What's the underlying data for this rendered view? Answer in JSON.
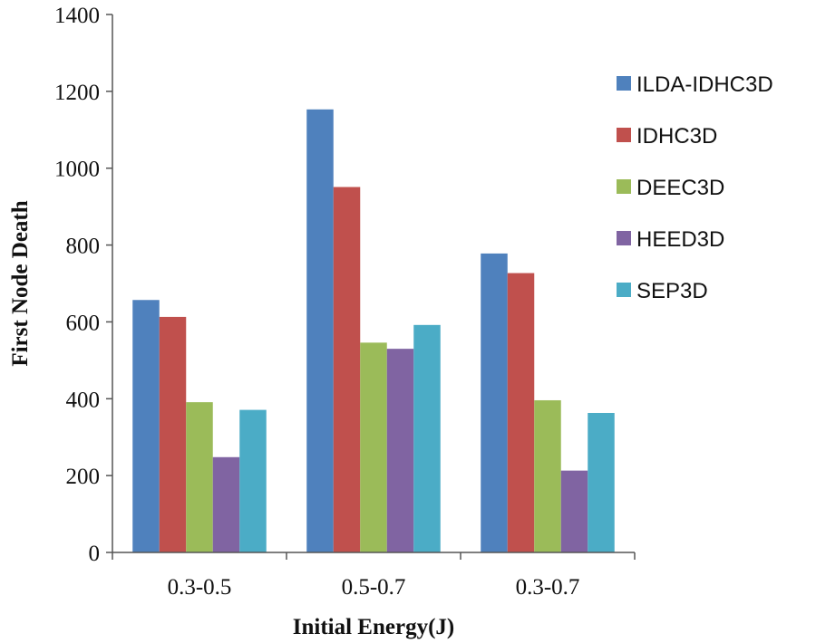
{
  "chart_data": {
    "type": "bar",
    "xlabel": "Initial Energy(J)",
    "ylabel": "First Node Death",
    "categories": [
      "0.3-0.5",
      "0.5-0.7",
      "0.3-0.7"
    ],
    "ylim": [
      0,
      1400
    ],
    "yticks": [
      "0",
      "200",
      "400",
      "600",
      "800",
      "1000",
      "1200",
      "1400"
    ],
    "grid": false,
    "legend_position": "right",
    "series": [
      {
        "name": "ILDA-IDHC3D",
        "color": "#4F81BD",
        "values": [
          657,
          1153,
          778
        ]
      },
      {
        "name": "IDHC3D",
        "color": "#C0504D",
        "values": [
          613,
          951,
          727
        ]
      },
      {
        "name": "DEEC3D",
        "color": "#9BBB59",
        "values": [
          391,
          546,
          396
        ]
      },
      {
        "name": "HEED3D",
        "color": "#8064A2",
        "values": [
          248,
          530,
          213
        ]
      },
      {
        "name": "SEP3D",
        "color": "#4BACC6",
        "values": [
          371,
          592,
          363
        ]
      }
    ]
  }
}
